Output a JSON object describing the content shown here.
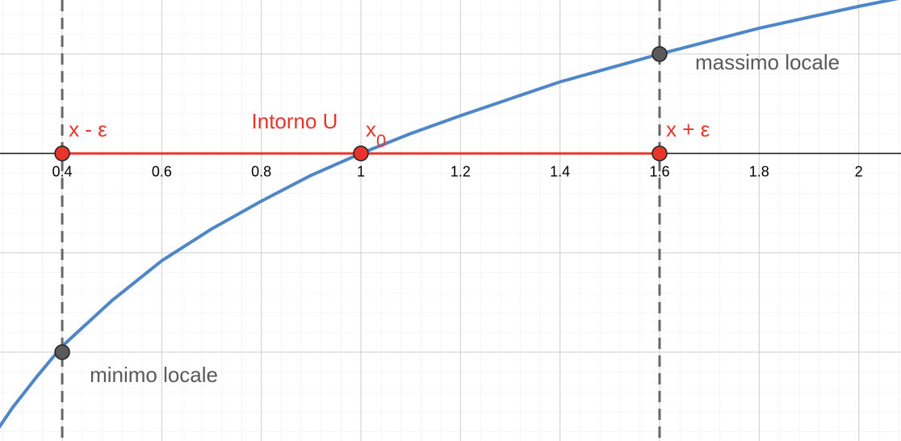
{
  "chart_data": {
    "type": "function-plot",
    "xlim": [
      0.275,
      2.085
    ],
    "ylim": [
      -1.447,
      0.772
    ],
    "xticks": [
      0.4,
      0.6,
      0.8,
      1,
      1.2,
      1.4,
      1.6,
      1.8,
      2
    ],
    "yticks": [
      -1,
      -0.5,
      0,
      0.5
    ],
    "grid": true,
    "series": [
      {
        "color": "#4e86c8",
        "x": [
          0.27,
          0.3,
          0.35,
          0.4,
          0.5,
          0.6,
          0.7,
          0.8,
          0.9,
          1,
          1.1,
          1.2,
          1.4,
          1.6,
          1.8,
          2,
          2.1
        ],
        "values": [
          -1.39,
          -1.28,
          -1.12,
          -0.97,
          -0.74,
          -0.54,
          -0.38,
          -0.24,
          -0.11,
          0,
          0.1,
          0.19,
          0.36,
          0.5,
          0.63,
          0.74,
          0.79
        ]
      }
    ],
    "vlines": [
      0.4,
      1.6
    ],
    "points": [
      {
        "x": 0.4,
        "y": 0,
        "label": "x - ε",
        "color": "#e8352b"
      },
      {
        "x": 1,
        "y": 0,
        "label": "x",
        "subscript": "0",
        "color": "#e8352b"
      },
      {
        "x": 1.6,
        "y": 0,
        "label": "x + ε",
        "color": "#e8352b"
      },
      {
        "x": 1.6,
        "y": 0.5,
        "label": "massimo locale",
        "color": "#5a5a5a"
      },
      {
        "x": 0.4,
        "y": -1,
        "label": "minimo locale",
        "color": "#5a5a5a"
      }
    ],
    "interval": {
      "label": "Intorno U",
      "color": "#e8352b"
    }
  }
}
